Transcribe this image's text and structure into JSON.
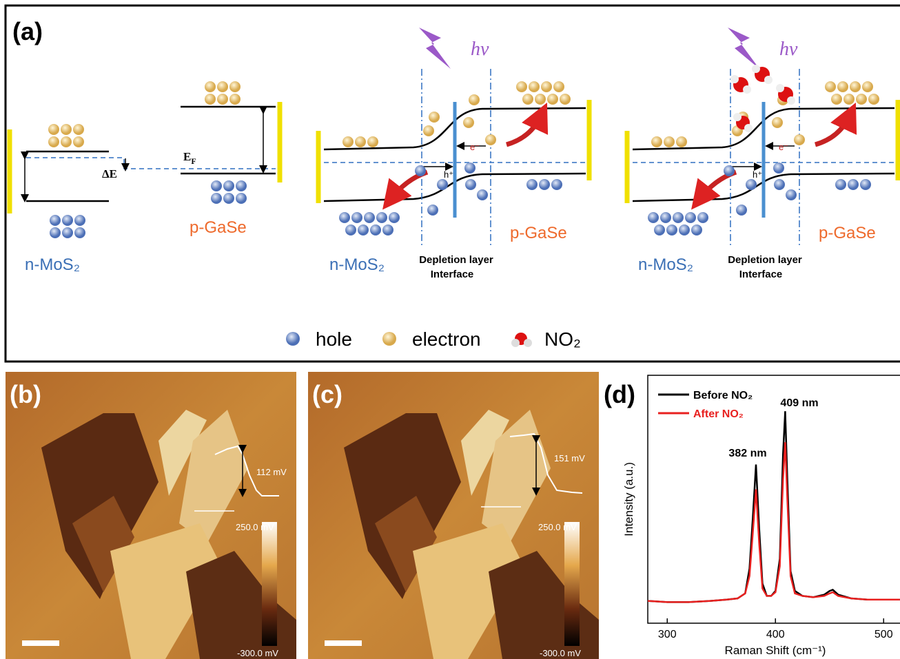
{
  "panel_a": {
    "label": "(a)",
    "diagram_1": {
      "n_label": "n-MoS₂",
      "p_label": "p-GaSe",
      "delta_e": "ΔE",
      "fermi": {
        "main": "E",
        "sub": "F"
      }
    },
    "diagram_2": {
      "light": "hv",
      "n_label": "n-MoS₂",
      "p_label": "p-GaSe",
      "depletion": "Depletion layer",
      "interface": "Interface",
      "electron_tag": "e⁻",
      "hole_tag": "h⁺"
    },
    "diagram_3": {
      "light": "hv",
      "n_label": "n-MoS₂",
      "p_label": "p-GaSe",
      "depletion": "Depletion layer",
      "interface": "Interface",
      "electron_tag": "e⁻",
      "hole_tag": "h⁺"
    },
    "legend": [
      "hole",
      "electron",
      "NO₂"
    ]
  },
  "panel_b": {
    "label": "(b)",
    "profile": "112 mV",
    "scale_max": "250.0 mV",
    "scale_min": "-300.0 mV"
  },
  "panel_c": {
    "label": "(c)",
    "profile": "151 mV",
    "scale_max": "250.0 mV",
    "scale_min": "-300.0 mV"
  },
  "chart_data": {
    "type": "line",
    "label": "(d)",
    "x_label": "Raman Shift (cm⁻¹)",
    "y_label": "Intensity (a.u.)",
    "annotations": [
      "382 nm",
      "409 nm"
    ],
    "x": [
      282,
      300,
      320,
      340,
      355,
      365,
      372,
      376,
      379,
      382,
      385,
      388,
      392,
      396,
      400,
      404,
      407,
      409,
      411,
      414,
      418,
      425,
      435,
      445,
      450,
      453,
      458,
      470,
      485,
      500,
      515
    ],
    "series": [
      {
        "name": "Before NO₂",
        "color": "#000000",
        "values": [
          9,
          8.5,
          8.5,
          9,
          9.5,
          10,
          12,
          22,
          42,
          64,
          38,
          16,
          11,
          11,
          13,
          26,
          68,
          85.5,
          58,
          21,
          13,
          11,
          10.5,
          11.5,
          13,
          13.5,
          11.5,
          10,
          9.5,
          9.5,
          9.5
        ]
      },
      {
        "name": "After NO₂",
        "color": "#e8201f",
        "values": [
          9,
          8.5,
          8.5,
          9,
          9.5,
          10,
          12,
          19,
          36,
          54,
          32,
          14,
          11,
          11,
          12.5,
          23,
          58,
          73,
          50,
          19,
          12,
          11,
          10.5,
          11,
          12,
          12.5,
          11,
          10,
          9.5,
          9.5,
          9.5
        ]
      }
    ],
    "xlim": [
      282,
      520
    ],
    "ylim": [
      0,
      100
    ],
    "xticks": [
      300,
      400,
      500
    ]
  }
}
